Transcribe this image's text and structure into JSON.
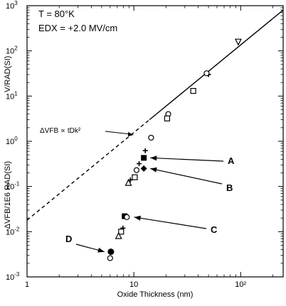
{
  "chart_data": {
    "type": "scatter",
    "xlabel": "Oxide Thickness (nm)",
    "ylabel": "-ΔVFB/1E6 RAD(SI)",
    "ylabel_right": "V/RAD(SI)",
    "x_scale": "log",
    "y_scale": "log",
    "xlim": [
      1,
      250
    ],
    "ylim": [
      0.001,
      1000
    ],
    "x_ticks": [
      {
        "value": 1,
        "label": "1"
      },
      {
        "value": 10,
        "label": "10"
      },
      {
        "value": 100,
        "label": "10²"
      }
    ],
    "y_ticks": [
      {
        "value": 0.001,
        "base": "10",
        "exp": "-3"
      },
      {
        "value": 0.01,
        "base": "10",
        "exp": "-2"
      },
      {
        "value": 0.1,
        "base": "10",
        "exp": "-1"
      },
      {
        "value": 1,
        "base": "10",
        "exp": "0"
      },
      {
        "value": 10,
        "base": "10",
        "exp": "1"
      },
      {
        "value": 100,
        "base": "10",
        "exp": "2"
      },
      {
        "value": 1000,
        "base": "10",
        "exp": "3"
      }
    ],
    "conditions": [
      "T = 80°K",
      "EDX = +2.0 MV/cm"
    ],
    "trend_annotation": "ΔVFB ∝ tDk²",
    "trend_line": [
      [
        1,
        0.018
      ],
      [
        250,
        800
      ]
    ],
    "points": [
      {
        "x": 95,
        "y": 160,
        "marker": "triangle-down"
      },
      {
        "x": 50,
        "y": 30,
        "marker": "plus"
      },
      {
        "x": 48,
        "y": 32,
        "marker": "circle-open"
      },
      {
        "x": 36,
        "y": 13,
        "marker": "square-open"
      },
      {
        "x": 21,
        "y": 4,
        "marker": "circle-open"
      },
      {
        "x": 20.5,
        "y": 3.2,
        "marker": "square-open"
      },
      {
        "x": 14.5,
        "y": 1.2,
        "marker": "circle-open"
      },
      {
        "x": 12.8,
        "y": 0.62,
        "marker": "plus"
      },
      {
        "x": 12.4,
        "y": 0.43,
        "marker": "square-filled"
      },
      {
        "x": 12.4,
        "y": 0.25,
        "marker": "diamond-filled"
      },
      {
        "x": 11.2,
        "y": 0.32,
        "marker": "plus"
      },
      {
        "x": 10.6,
        "y": 0.23,
        "marker": "circle-open"
      },
      {
        "x": 10.2,
        "y": 0.16,
        "marker": "square-open"
      },
      {
        "x": 9.3,
        "y": 0.14,
        "marker": "plus"
      },
      {
        "x": 8.9,
        "y": 0.12,
        "marker": "triangle-up"
      },
      {
        "x": 8.2,
        "y": 0.022,
        "marker": "square-filled"
      },
      {
        "x": 8.6,
        "y": 0.021,
        "marker": "circle-open"
      },
      {
        "x": 7.9,
        "y": 0.012,
        "marker": "plus"
      },
      {
        "x": 7.6,
        "y": 0.01,
        "marker": "square-open"
      },
      {
        "x": 7.2,
        "y": 0.008,
        "marker": "triangle-up"
      },
      {
        "x": 6.1,
        "y": 0.0036,
        "marker": "circle-filled"
      },
      {
        "x": 6.0,
        "y": 0.0026,
        "marker": "circle-open"
      }
    ],
    "callouts": [
      {
        "label": "A",
        "tip": [
          12.6,
          0.43
        ]
      },
      {
        "label": "B",
        "tip": [
          12.6,
          0.25
        ]
      },
      {
        "label": "C",
        "tip": [
          8.9,
          0.021
        ]
      },
      {
        "label": "D",
        "tip": [
          6.0,
          0.0036
        ]
      }
    ]
  }
}
